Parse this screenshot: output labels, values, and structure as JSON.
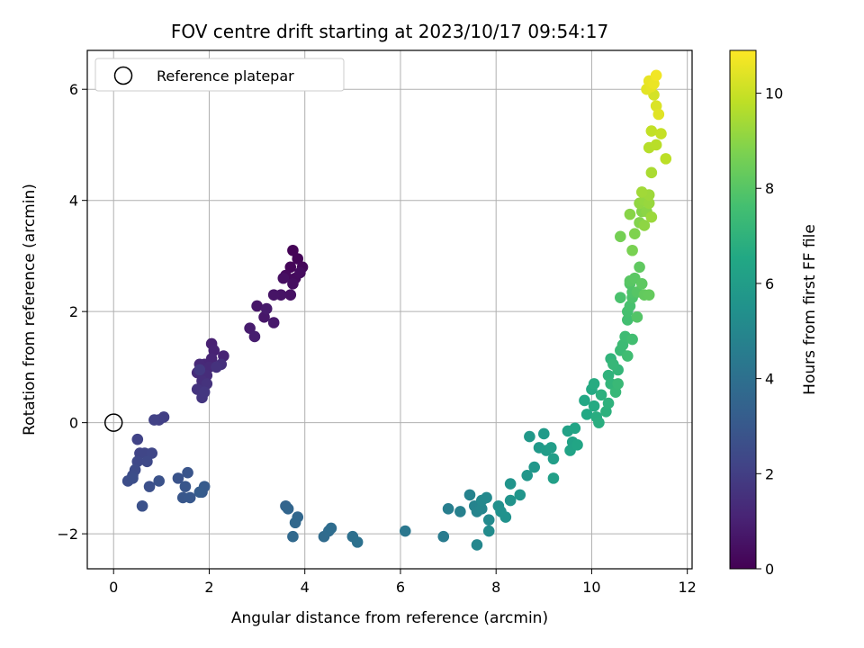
{
  "chart_data": {
    "type": "scatter",
    "title": "FOV centre drift starting at 2023/10/17 09:54:17",
    "xlabel": "Angular distance from reference (arcmin)",
    "ylabel": "Rotation from reference (arcmin)",
    "colorbar_label": "Hours from first FF file",
    "xlim": [
      -0.55,
      12.1
    ],
    "ylim": [
      -2.63,
      6.7
    ],
    "xticks": [
      0,
      2,
      4,
      6,
      8,
      10,
      12
    ],
    "yticks": [
      -2,
      0,
      2,
      4,
      6
    ],
    "colorbar_range": [
      0,
      10.9
    ],
    "colorbar_ticks": [
      0,
      2,
      4,
      6,
      8,
      10
    ],
    "colormap": "viridis",
    "grid": true,
    "legend": {
      "placement": "top-left",
      "entries": [
        {
          "label": "Reference platepar",
          "marker": "open-circle"
        }
      ]
    },
    "reference": {
      "x": 0,
      "y": 0
    },
    "points": [
      [
        3.75,
        3.1,
        0.05
      ],
      [
        3.85,
        2.95,
        0.1
      ],
      [
        3.7,
        2.8,
        0.15
      ],
      [
        3.95,
        2.8,
        0.2
      ],
      [
        3.6,
        2.65,
        0.25
      ],
      [
        3.8,
        2.6,
        0.3
      ],
      [
        3.9,
        2.7,
        0.35
      ],
      [
        3.75,
        2.5,
        0.4
      ],
      [
        3.55,
        2.6,
        0.45
      ],
      [
        3.7,
        2.3,
        0.5
      ],
      [
        3.5,
        2.3,
        0.55
      ],
      [
        3.35,
        2.3,
        0.6
      ],
      [
        3.0,
        2.1,
        0.65
      ],
      [
        3.15,
        1.9,
        0.7
      ],
      [
        3.35,
        1.8,
        0.75
      ],
      [
        3.2,
        2.05,
        0.8
      ],
      [
        2.85,
        1.7,
        0.85
      ],
      [
        2.95,
        1.55,
        0.9
      ],
      [
        2.05,
        1.42,
        1.0
      ],
      [
        2.1,
        1.3,
        1.05
      ],
      [
        2.3,
        1.2,
        1.1
      ],
      [
        2.05,
        1.15,
        1.15
      ],
      [
        1.9,
        1.05,
        1.2
      ],
      [
        1.8,
        1.05,
        1.25
      ],
      [
        2.0,
        1.0,
        1.3
      ],
      [
        1.75,
        0.9,
        1.35
      ],
      [
        1.95,
        0.85,
        1.4
      ],
      [
        1.85,
        0.75,
        1.45
      ],
      [
        2.25,
        1.05,
        1.5
      ],
      [
        2.15,
        1.0,
        1.55
      ],
      [
        1.95,
        0.7,
        1.6
      ],
      [
        1.75,
        0.6,
        1.65
      ],
      [
        1.85,
        0.45,
        1.7
      ],
      [
        1.9,
        0.55,
        1.75
      ],
      [
        1.8,
        0.95,
        1.8
      ],
      [
        1.05,
        0.1,
        2.0
      ],
      [
        0.95,
        0.05,
        2.05
      ],
      [
        0.85,
        0.05,
        2.1
      ],
      [
        0.5,
        -0.3,
        2.15
      ],
      [
        0.55,
        -0.55,
        2.2
      ],
      [
        0.65,
        -0.55,
        2.25
      ],
      [
        0.8,
        -0.55,
        2.3
      ],
      [
        0.5,
        -0.7,
        2.35
      ],
      [
        0.7,
        -0.7,
        2.4
      ],
      [
        0.45,
        -0.85,
        2.45
      ],
      [
        0.4,
        -0.95,
        2.5
      ],
      [
        0.3,
        -1.05,
        2.55
      ],
      [
        0.4,
        -1.0,
        2.6
      ],
      [
        0.75,
        -1.15,
        2.65
      ],
      [
        0.6,
        -1.5,
        2.7
      ],
      [
        0.95,
        -1.05,
        2.75
      ],
      [
        1.35,
        -1.0,
        2.8
      ],
      [
        1.55,
        -0.9,
        2.85
      ],
      [
        1.5,
        -1.15,
        2.9
      ],
      [
        1.45,
        -1.35,
        2.95
      ],
      [
        1.6,
        -1.35,
        3.0
      ],
      [
        1.85,
        -1.25,
        3.05
      ],
      [
        1.9,
        -1.15,
        3.1
      ],
      [
        1.8,
        -1.25,
        3.15
      ],
      [
        3.6,
        -1.5,
        3.5
      ],
      [
        3.65,
        -1.55,
        3.55
      ],
      [
        3.85,
        -1.7,
        3.6
      ],
      [
        3.8,
        -1.8,
        3.65
      ],
      [
        3.75,
        -2.05,
        3.7
      ],
      [
        4.4,
        -2.05,
        3.8
      ],
      [
        4.5,
        -1.95,
        3.85
      ],
      [
        4.55,
        -1.9,
        3.9
      ],
      [
        5.0,
        -2.05,
        4.0
      ],
      [
        5.1,
        -2.15,
        4.05
      ],
      [
        6.1,
        -1.95,
        4.3
      ],
      [
        6.9,
        -2.05,
        4.5
      ],
      [
        7.0,
        -1.55,
        4.6
      ],
      [
        7.25,
        -1.6,
        4.7
      ],
      [
        7.45,
        -1.3,
        4.8
      ],
      [
        7.55,
        -1.5,
        4.85
      ],
      [
        7.6,
        -1.6,
        4.9
      ],
      [
        7.7,
        -1.55,
        4.95
      ],
      [
        7.6,
        -2.2,
        5.0
      ],
      [
        7.7,
        -1.4,
        5.05
      ],
      [
        7.8,
        -1.35,
        5.1
      ],
      [
        7.85,
        -1.75,
        5.15
      ],
      [
        7.85,
        -1.95,
        5.2
      ],
      [
        8.05,
        -1.5,
        5.4
      ],
      [
        8.1,
        -1.6,
        5.45
      ],
      [
        8.2,
        -1.7,
        5.5
      ],
      [
        8.3,
        -1.4,
        5.55
      ],
      [
        8.3,
        -1.1,
        5.6
      ],
      [
        8.5,
        -1.3,
        5.65
      ],
      [
        8.65,
        -0.95,
        5.7
      ],
      [
        8.8,
        -0.8,
        5.75
      ],
      [
        8.7,
        -0.25,
        5.8
      ],
      [
        8.9,
        -0.45,
        5.85
      ],
      [
        9.0,
        -0.2,
        5.9
      ],
      [
        9.05,
        -0.5,
        5.95
      ],
      [
        9.15,
        -0.45,
        6.0
      ],
      [
        9.2,
        -0.65,
        6.05
      ],
      [
        9.2,
        -1.0,
        6.1
      ],
      [
        9.5,
        -0.15,
        6.2
      ],
      [
        9.6,
        -0.35,
        6.25
      ],
      [
        9.55,
        -0.5,
        6.3
      ],
      [
        9.65,
        -0.1,
        6.35
      ],
      [
        9.7,
        -0.4,
        6.4
      ],
      [
        9.85,
        0.4,
        6.5
      ],
      [
        9.9,
        0.15,
        6.55
      ],
      [
        10.0,
        0.6,
        6.6
      ],
      [
        10.05,
        0.3,
        6.65
      ],
      [
        10.05,
        0.7,
        6.7
      ],
      [
        10.1,
        0.1,
        6.75
      ],
      [
        10.15,
        0.0,
        6.8
      ],
      [
        10.2,
        0.5,
        6.85
      ],
      [
        10.3,
        0.2,
        6.9
      ],
      [
        10.35,
        0.35,
        6.95
      ],
      [
        10.35,
        0.85,
        7.0
      ],
      [
        10.4,
        1.15,
        7.05
      ],
      [
        10.4,
        0.7,
        7.1
      ],
      [
        10.55,
        0.95,
        7.15
      ],
      [
        10.45,
        1.05,
        7.2
      ],
      [
        10.5,
        0.55,
        7.25
      ],
      [
        10.55,
        0.7,
        7.3
      ],
      [
        10.6,
        1.3,
        7.35
      ],
      [
        10.65,
        1.4,
        7.4
      ],
      [
        10.7,
        1.55,
        7.45
      ],
      [
        10.75,
        1.2,
        7.5
      ],
      [
        10.85,
        1.5,
        7.55
      ],
      [
        10.75,
        1.85,
        7.6
      ],
      [
        10.75,
        2.0,
        7.65
      ],
      [
        10.8,
        2.1,
        7.7
      ],
      [
        10.6,
        2.25,
        7.75
      ],
      [
        10.85,
        2.25,
        7.8
      ],
      [
        10.85,
        2.35,
        7.85
      ],
      [
        10.8,
        2.5,
        7.9
      ],
      [
        10.95,
        1.9,
        7.95
      ],
      [
        10.95,
        2.35,
        8.0
      ],
      [
        10.8,
        2.55,
        8.05
      ],
      [
        10.9,
        2.6,
        8.1
      ],
      [
        11.05,
        2.5,
        8.15
      ],
      [
        11.0,
        2.8,
        8.2
      ],
      [
        11.1,
        2.3,
        8.25
      ],
      [
        11.2,
        2.3,
        8.3
      ],
      [
        10.6,
        3.35,
        8.6
      ],
      [
        10.85,
        3.1,
        8.7
      ],
      [
        10.9,
        3.4,
        8.8
      ],
      [
        11.0,
        3.6,
        8.85
      ],
      [
        11.05,
        3.8,
        8.9
      ],
      [
        10.8,
        3.75,
        8.95
      ],
      [
        11.15,
        3.8,
        9.0
      ],
      [
        11.1,
        3.55,
        9.05
      ],
      [
        11.0,
        3.95,
        9.1
      ],
      [
        11.1,
        4.0,
        9.15
      ],
      [
        11.2,
        3.95,
        9.2
      ],
      [
        11.25,
        3.7,
        9.25
      ],
      [
        11.2,
        4.1,
        9.3
      ],
      [
        11.05,
        4.15,
        9.35
      ],
      [
        11.25,
        4.5,
        9.5
      ],
      [
        11.2,
        4.95,
        9.7
      ],
      [
        11.35,
        5.0,
        9.75
      ],
      [
        11.55,
        4.75,
        9.8
      ],
      [
        11.25,
        5.25,
        9.9
      ],
      [
        11.45,
        5.2,
        9.95
      ],
      [
        11.3,
        5.9,
        10.2
      ],
      [
        11.35,
        5.7,
        10.3
      ],
      [
        11.4,
        5.55,
        10.4
      ],
      [
        11.15,
        6.0,
        10.45
      ],
      [
        11.25,
        6.05,
        10.5
      ],
      [
        11.2,
        6.15,
        10.55
      ],
      [
        11.3,
        6.1,
        10.6
      ],
      [
        11.35,
        6.25,
        10.7
      ]
    ]
  }
}
